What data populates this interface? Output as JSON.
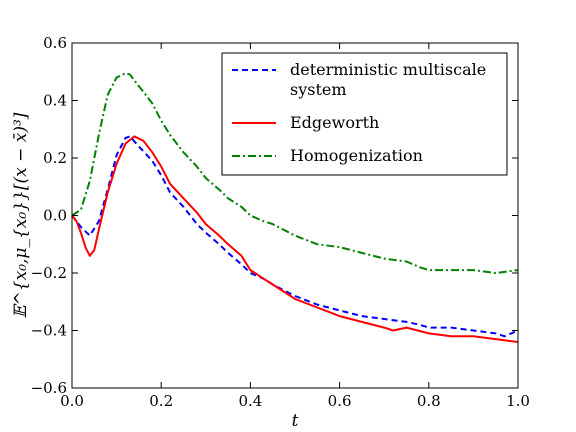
{
  "chart_data": {
    "type": "line",
    "xlabel": "t",
    "ylabel": "𝔼^{x₀,μ_{x₀}}[(x − x̄)³]",
    "xlim": [
      0.0,
      1.0
    ],
    "ylim": [
      -0.6,
      0.6
    ],
    "x_ticks": [
      "0.0",
      "0.2",
      "0.4",
      "0.6",
      "0.8",
      "1.0"
    ],
    "y_ticks": [
      "−0.6",
      "−0.4",
      "−0.2",
      "0.0",
      "0.2",
      "0.4",
      "0.6"
    ],
    "grid": false,
    "legend_position": "top-right",
    "series": [
      {
        "name": "deterministic multiscale system",
        "legend_lines": [
          "deterministic multiscale",
          "system"
        ],
        "color": "#0000ff",
        "style": "dashed",
        "x": [
          0.0,
          0.02,
          0.04,
          0.06,
          0.08,
          0.1,
          0.12,
          0.13,
          0.15,
          0.18,
          0.2,
          0.22,
          0.25,
          0.28,
          0.3,
          0.33,
          0.35,
          0.38,
          0.4,
          0.43,
          0.45,
          0.5,
          0.55,
          0.6,
          0.65,
          0.7,
          0.75,
          0.78,
          0.8,
          0.85,
          0.9,
          0.95,
          0.97,
          1.0
        ],
        "y": [
          0.0,
          -0.04,
          -0.07,
          -0.02,
          0.09,
          0.21,
          0.27,
          0.275,
          0.24,
          0.19,
          0.14,
          0.08,
          0.03,
          -0.03,
          -0.06,
          -0.1,
          -0.13,
          -0.17,
          -0.2,
          -0.22,
          -0.24,
          -0.28,
          -0.31,
          -0.33,
          -0.35,
          -0.36,
          -0.37,
          -0.38,
          -0.39,
          -0.39,
          -0.4,
          -0.41,
          -0.42,
          -0.4
        ]
      },
      {
        "name": "Edgeworth",
        "legend_lines": [
          "Edgeworth"
        ],
        "color": "#ff0000",
        "style": "solid",
        "x": [
          0.0,
          0.01,
          0.02,
          0.03,
          0.04,
          0.05,
          0.06,
          0.08,
          0.1,
          0.12,
          0.14,
          0.16,
          0.18,
          0.2,
          0.22,
          0.25,
          0.28,
          0.3,
          0.33,
          0.35,
          0.38,
          0.4,
          0.43,
          0.45,
          0.5,
          0.55,
          0.6,
          0.65,
          0.7,
          0.72,
          0.75,
          0.8,
          0.85,
          0.9,
          0.95,
          1.0
        ],
        "y": [
          0.0,
          -0.02,
          -0.06,
          -0.11,
          -0.14,
          -0.12,
          -0.05,
          0.08,
          0.18,
          0.25,
          0.275,
          0.26,
          0.22,
          0.17,
          0.11,
          0.06,
          0.01,
          -0.03,
          -0.07,
          -0.1,
          -0.14,
          -0.19,
          -0.22,
          -0.24,
          -0.29,
          -0.32,
          -0.35,
          -0.37,
          -0.39,
          -0.4,
          -0.39,
          -0.41,
          -0.42,
          -0.42,
          -0.43,
          -0.44
        ]
      },
      {
        "name": "Homogenization",
        "legend_lines": [
          "Homogenization"
        ],
        "color": "#008000",
        "style": "dashdot",
        "x": [
          0.0,
          0.02,
          0.04,
          0.06,
          0.08,
          0.1,
          0.12,
          0.13,
          0.14,
          0.16,
          0.18,
          0.2,
          0.22,
          0.25,
          0.28,
          0.3,
          0.33,
          0.35,
          0.38,
          0.4,
          0.43,
          0.45,
          0.5,
          0.55,
          0.6,
          0.65,
          0.7,
          0.75,
          0.78,
          0.8,
          0.85,
          0.9,
          0.95,
          1.0
        ],
        "y": [
          0.0,
          0.02,
          0.12,
          0.28,
          0.42,
          0.48,
          0.495,
          0.49,
          0.47,
          0.43,
          0.39,
          0.33,
          0.28,
          0.22,
          0.17,
          0.13,
          0.09,
          0.06,
          0.03,
          0.0,
          -0.02,
          -0.03,
          -0.07,
          -0.1,
          -0.11,
          -0.13,
          -0.15,
          -0.16,
          -0.18,
          -0.19,
          -0.19,
          -0.19,
          -0.2,
          -0.19
        ]
      }
    ]
  }
}
